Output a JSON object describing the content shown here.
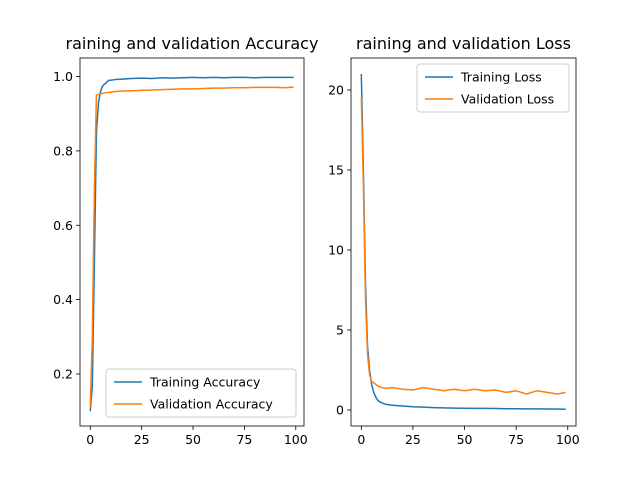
{
  "chart_data": [
    {
      "type": "line",
      "title": "raining and validation Accuracy",
      "xlabel": "",
      "ylabel": "",
      "xlim": [
        -5,
        104
      ],
      "ylim": [
        0.06,
        1.05
      ],
      "xticks": [
        0,
        25,
        50,
        75,
        100
      ],
      "yticks": [
        0.2,
        0.4,
        0.6,
        0.8,
        1.0
      ],
      "ytick_labels": [
        "0.2",
        "0.4",
        "0.6",
        "0.8",
        "1.0"
      ],
      "grid": false,
      "legend": "lower-right",
      "series": [
        {
          "name": "Training Accuracy",
          "color": "#1f77b4",
          "x": [
            0,
            1,
            2,
            3,
            4,
            5,
            6,
            7,
            8,
            9,
            10,
            12,
            15,
            20,
            25,
            30,
            35,
            40,
            45,
            50,
            55,
            60,
            65,
            70,
            75,
            80,
            85,
            90,
            95,
            99
          ],
          "y": [
            0.1,
            0.17,
            0.5,
            0.85,
            0.93,
            0.96,
            0.975,
            0.98,
            0.985,
            0.99,
            0.99,
            0.992,
            0.993,
            0.995,
            0.996,
            0.995,
            0.997,
            0.996,
            0.997,
            0.998,
            0.997,
            0.998,
            0.997,
            0.998,
            0.998,
            0.997,
            0.998,
            0.998,
            0.998,
            0.998
          ]
        },
        {
          "name": "Validation Accuracy",
          "color": "#ff7f0e",
          "x": [
            0,
            1,
            2,
            3,
            4,
            5,
            6,
            7,
            8,
            9,
            10,
            12,
            15,
            20,
            25,
            30,
            35,
            40,
            45,
            50,
            55,
            60,
            65,
            70,
            75,
            80,
            85,
            90,
            95,
            99
          ],
          "y": [
            0.11,
            0.3,
            0.7,
            0.95,
            0.952,
            0.953,
            0.955,
            0.956,
            0.957,
            0.958,
            0.958,
            0.96,
            0.961,
            0.962,
            0.963,
            0.964,
            0.965,
            0.966,
            0.967,
            0.967,
            0.968,
            0.969,
            0.969,
            0.97,
            0.97,
            0.971,
            0.971,
            0.971,
            0.97,
            0.972
          ]
        }
      ]
    },
    {
      "type": "line",
      "title": "raining and validation Loss",
      "xlabel": "",
      "ylabel": "",
      "xlim": [
        -5,
        104
      ],
      "ylim": [
        -1.0,
        22.0
      ],
      "xticks": [
        0,
        25,
        50,
        75,
        100
      ],
      "yticks": [
        0,
        5,
        10,
        15,
        20
      ],
      "ytick_labels": [
        "0",
        "5",
        "10",
        "15",
        "20"
      ],
      "grid": false,
      "legend": "upper-right",
      "series": [
        {
          "name": "Training Loss",
          "color": "#1f77b4",
          "x": [
            0,
            1,
            2,
            3,
            4,
            5,
            6,
            7,
            8,
            9,
            10,
            12,
            15,
            20,
            25,
            30,
            35,
            40,
            45,
            50,
            55,
            60,
            65,
            70,
            75,
            80,
            85,
            90,
            95,
            99
          ],
          "y": [
            21.0,
            15.0,
            8.0,
            4.0,
            2.5,
            1.6,
            1.1,
            0.8,
            0.6,
            0.5,
            0.45,
            0.35,
            0.3,
            0.25,
            0.2,
            0.18,
            0.15,
            0.13,
            0.12,
            0.11,
            0.1,
            0.1,
            0.09,
            0.08,
            0.08,
            0.07,
            0.07,
            0.06,
            0.06,
            0.05
          ]
        },
        {
          "name": "Validation Loss",
          "color": "#ff7f0e",
          "x": [
            0,
            1,
            2,
            3,
            4,
            5,
            6,
            7,
            8,
            9,
            10,
            12,
            15,
            20,
            25,
            30,
            35,
            40,
            45,
            50,
            55,
            60,
            65,
            70,
            75,
            80,
            85,
            90,
            95,
            99
          ],
          "y": [
            19.5,
            14.0,
            7.0,
            3.5,
            2.2,
            1.8,
            1.7,
            1.6,
            1.5,
            1.45,
            1.4,
            1.35,
            1.4,
            1.3,
            1.25,
            1.4,
            1.3,
            1.2,
            1.3,
            1.2,
            1.3,
            1.2,
            1.25,
            1.1,
            1.2,
            1.0,
            1.2,
            1.1,
            1.0,
            1.1
          ]
        }
      ]
    }
  ]
}
